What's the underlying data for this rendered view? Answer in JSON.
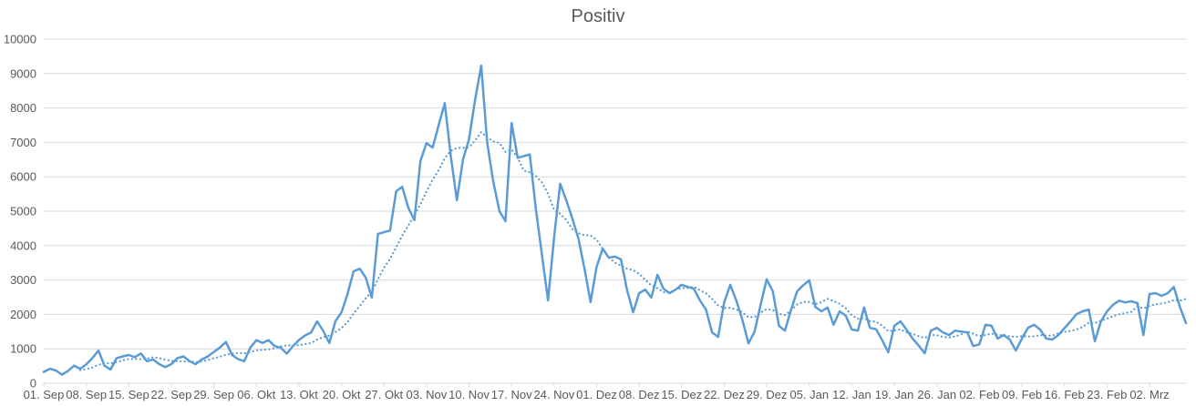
{
  "chart_data": {
    "type": "line",
    "title": "Positiv",
    "legend": "none",
    "grid": "horizontal",
    "ylim": [
      0,
      10000
    ],
    "y_ticks": [
      0,
      1000,
      2000,
      3000,
      4000,
      5000,
      6000,
      7000,
      8000,
      9000,
      10000
    ],
    "x_tick_labels": [
      "01. Sep",
      "08. Sep",
      "15. Sep",
      "22. Sep",
      "29. Sep",
      "06. Okt",
      "13. Okt",
      "20. Okt",
      "27. Okt",
      "03. Nov",
      "10. Nov",
      "17. Nov",
      "24. Nov",
      "01. Dez",
      "08. Dez",
      "15. Dez",
      "22. Dez",
      "29. Dez",
      "05. Jan",
      "12. Jan",
      "19. Jan",
      "26. Jan",
      "02. Feb",
      "09. Feb",
      "16. Feb",
      "23. Feb",
      "02. Mrz"
    ],
    "x_tick_every_n_points": 7,
    "series": [
      {
        "name": "Positiv",
        "style": "solid",
        "values": [
          330,
          420,
          370,
          250,
          360,
          510,
          420,
          550,
          730,
          950,
          510,
          400,
          730,
          780,
          820,
          760,
          865,
          640,
          690,
          555,
          470,
          555,
          730,
          780,
          640,
          555,
          690,
          780,
          910,
          1040,
          1200,
          820,
          700,
          640,
          1035,
          1255,
          1170,
          1255,
          1080,
          1035,
          860,
          1080,
          1255,
          1390,
          1475,
          1800,
          1520,
          1170,
          1800,
          2060,
          2590,
          3250,
          3330,
          3070,
          2490,
          4340,
          4390,
          4440,
          5580,
          5710,
          5100,
          4740,
          6460,
          6980,
          6850,
          7500,
          8140,
          6600,
          5320,
          6500,
          7090,
          8240,
          9230,
          6980,
          5850,
          5000,
          4710,
          7560,
          6550,
          6600,
          6650,
          5050,
          3730,
          2410,
          4260,
          5800,
          5320,
          4790,
          4210,
          3330,
          2360,
          3390,
          3910,
          3650,
          3680,
          3600,
          2720,
          2060,
          2620,
          2720,
          2490,
          3150,
          2750,
          2620,
          2720,
          2860,
          2800,
          2750,
          2410,
          2140,
          1480,
          1350,
          2360,
          2860,
          2400,
          1830,
          1160,
          1500,
          2300,
          3020,
          2670,
          1670,
          1530,
          2140,
          2670,
          2850,
          2990,
          2220,
          2090,
          2200,
          1700,
          2090,
          1960,
          1560,
          1530,
          2200,
          1610,
          1570,
          1250,
          900,
          1670,
          1800,
          1560,
          1300,
          1100,
          870,
          1530,
          1610,
          1480,
          1400,
          1530,
          1500,
          1480,
          1080,
          1130,
          1700,
          1670,
          1300,
          1400,
          1270,
          950,
          1300,
          1610,
          1700,
          1560,
          1300,
          1270,
          1400,
          1600,
          1800,
          2010,
          2090,
          2140,
          1220,
          1800,
          2090,
          2280,
          2400,
          2350,
          2380,
          2330,
          1400,
          2590,
          2620,
          2540,
          2620,
          2800,
          2220,
          1750
        ]
      }
    ],
    "trendline": {
      "type": "moving_average",
      "window": 7,
      "style": "dotted"
    },
    "colors": {
      "series": "#5B9BD5",
      "trendline": "#5B9BD5",
      "gridline": "#D9D9D9",
      "axis_line": "#D9D9D9",
      "axis_text": "#595959",
      "title_text": "#595959",
      "background": "#FFFFFF"
    }
  }
}
